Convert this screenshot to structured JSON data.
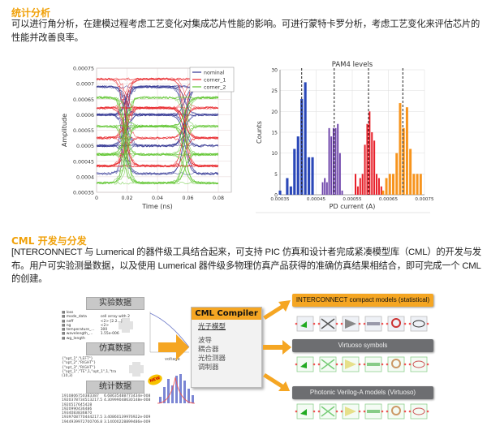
{
  "section1": {
    "title": "统计分析",
    "text": "可以进行角分析，在建模过程考虑工艺变化对集成芯片性能的影响。可进行蒙特卡罗分析，考虑工艺变化来评估芯片的性能并改善良率。"
  },
  "section2": {
    "title": "CML 开发与分发",
    "text": "[NTERCONNECT 与 Lumerical 的器件级工具结合起来，可支持 PIC 仿真和设计者完成紧凑模型库（CML）的开发与发布。用户可实验测量数据，以及使用 Lumerical 器件级多物理仿真产品获得的准确仿真结果相结合，即可完成一个 CML 的创建。"
  },
  "chart_data": [
    {
      "type": "line",
      "title": "",
      "xlabel": "Time (ns)",
      "ylabel": "Amplitude",
      "xlim": [
        0,
        0.09
      ],
      "ylim": [
        0.00035,
        0.00075
      ],
      "xticks": [
        "0",
        "0.02",
        "0.04",
        "0.06",
        "0.08"
      ],
      "yticks": [
        "0.00035",
        "0.0004",
        "0.00045",
        "0.0005",
        "0.00055",
        "0.0006",
        "0.00065",
        "0.0007",
        "0.00075"
      ],
      "grid": true,
      "legend": "top-right",
      "transition_times": [
        0.018,
        0.058
      ],
      "series": [
        {
          "name": "nominal",
          "color": "#2e3192",
          "levels": [
            0.00041,
            0.0005,
            0.0006,
            0.00069
          ]
        },
        {
          "name": "corner_1",
          "color": "#e8262a",
          "levels": [
            0.000435,
            0.000525,
            0.000622,
            0.000715
          ]
        },
        {
          "name": "corner_2",
          "color": "#5ec42e",
          "levels": [
            0.00038,
            0.000472,
            0.000563,
            0.000655
          ]
        }
      ]
    },
    {
      "type": "bar",
      "title": "PAM4 levels",
      "xlabel": "PD current (A)",
      "ylabel": "Counts",
      "xlim": [
        0.00035,
        0.00075
      ],
      "ylim": [
        0,
        30
      ],
      "xticks": [
        "0.00035",
        "0.00045",
        "0.00055",
        "0.00065",
        "0.00075"
      ],
      "yticks": [
        "0",
        "5",
        "10",
        "15",
        "20",
        "25",
        "30"
      ],
      "grid": true,
      "series": [
        {
          "color": "#2b48b8",
          "mean": 0.00041,
          "x_start": 0.00035,
          "bin_width": 1e-05,
          "counts": [
            1,
            0,
            4,
            2,
            11,
            14,
            23,
            27,
            9,
            9
          ]
        },
        {
          "color": "#6a3fa8",
          "mean": 0.0005,
          "x_start": 0.000468,
          "bin_width": 6e-06,
          "counts": [
            3,
            4,
            3,
            16,
            14,
            16,
            16,
            17,
            10,
            1
          ]
        },
        {
          "color": "#e8202a",
          "mean": 0.000595,
          "x_start": 0.000559,
          "bin_width": 6.5e-06,
          "counts": [
            5,
            2,
            4,
            5,
            12,
            17,
            20,
            15,
            13,
            5,
            4,
            2
          ]
        },
        {
          "color": "#f7941d",
          "mean": 0.00069,
          "x_start": 0.000635,
          "bin_width": 9.5e-06,
          "counts": [
            1,
            4,
            5,
            5,
            10,
            22,
            16,
            21,
            11,
            5,
            5,
            5
          ]
        }
      ]
    }
  ],
  "diagram": {
    "inputs": [
      "实验数据",
      "仿真数据",
      "统计数据"
    ],
    "table_rows": [
      "loss",
      "mode_data",
      "neff",
      "ng",
      "temperature_...",
      "wavelength_...",
      "wg_length"
    ],
    "table_values": [
      "",
      "cell array with 2",
      "<2> [2.2...]",
      "<2>",
      "300",
      "1.55e-006",
      ""
    ],
    "sim_rows": [
      "{\"opt_1\",\"LEFT\"}",
      "{\"opt_2\",\"RIGHT\"}",
      "{\"opt_3\",\"RIGHT\"}",
      "{\"opt_1\",\"TE\",1,\"opt_1\",1,\"tra",
      "(10,3)"
    ],
    "stat_rows": [
      "1910806750383387",
      "1920378734513217.5",
      "1920517645428",
      "1920990436486",
      "1934083836870",
      "1939708770444217.5",
      "1944939972700706.8"
    ],
    "stat_values": [
      "6.68635488773434e-008",
      "4.30999048630148e-008",
      "",
      "",
      "",
      "3.40860139976922e-009",
      "3.14000228899486e-009"
    ],
    "graph_xlabel": "voltage",
    "badge": "NEW",
    "compiler": {
      "title": "CML Compiler",
      "subtitle": "光子模型",
      "items": [
        "波导",
        "耦合器",
        "光检测器",
        "调制器"
      ]
    },
    "outputs": [
      {
        "label": "INTERCONNECT compact models (statistical)",
        "color": "#f5a623"
      },
      {
        "label": "Virtuoso symbols",
        "color": "#6d6e71"
      },
      {
        "label": "Photonic Verilog-A models (Virtuoso)",
        "color": "#6d6e71"
      }
    ],
    "accent": "#f5a623"
  }
}
